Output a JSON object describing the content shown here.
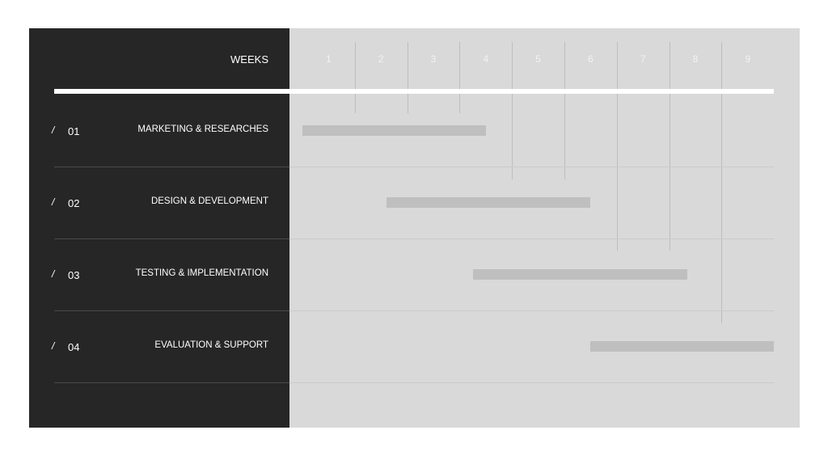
{
  "chart_data": {
    "type": "gantt",
    "header_label": "WEEKS",
    "weeks": [
      "1",
      "2",
      "3",
      "4",
      "5",
      "6",
      "7",
      "8",
      "9"
    ],
    "tasks": [
      {
        "slash": "/",
        "number": "01",
        "name": "MARKETING & RESEARCHES",
        "start": 0,
        "end": 3.5
      },
      {
        "slash": "/",
        "number": "02",
        "name": "DESIGN & DEVELOPMENT",
        "start": 1.6,
        "end": 5.5
      },
      {
        "slash": "/",
        "number": "03",
        "name": "TESTING & IMPLEMENTATION",
        "start": 3.25,
        "end": 7.35
      },
      {
        "slash": "/",
        "number": "04",
        "name": "EVALUATION & SUPPORT",
        "start": 5.5,
        "end": 9
      }
    ],
    "colors": {
      "left_panel": "#262626",
      "chart_bg": "#d9d9d9",
      "bar": "#bfbfbf",
      "header_rule": "#ffffff"
    }
  }
}
